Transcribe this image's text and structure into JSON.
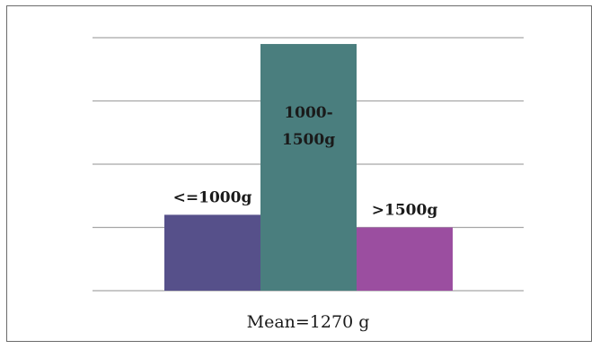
{
  "chart_data": {
    "type": "bar",
    "categories": [
      "<=1000g",
      "1000-1500g",
      ">1500g"
    ],
    "values": [
      12,
      39,
      10
    ],
    "data_labels": [
      [
        "<=1000g"
      ],
      [
        "1000-",
        "1500g"
      ],
      [
        ">1500g"
      ]
    ],
    "ylim": [
      0,
      40
    ],
    "yticks": [
      0,
      10,
      20,
      30,
      40
    ],
    "grid": true,
    "xlabel": "Mean=1270 g",
    "colors": [
      "#56508a",
      "#4a7e7e",
      "#9b4ea0"
    ],
    "grid_color": "#a6a6a6"
  }
}
